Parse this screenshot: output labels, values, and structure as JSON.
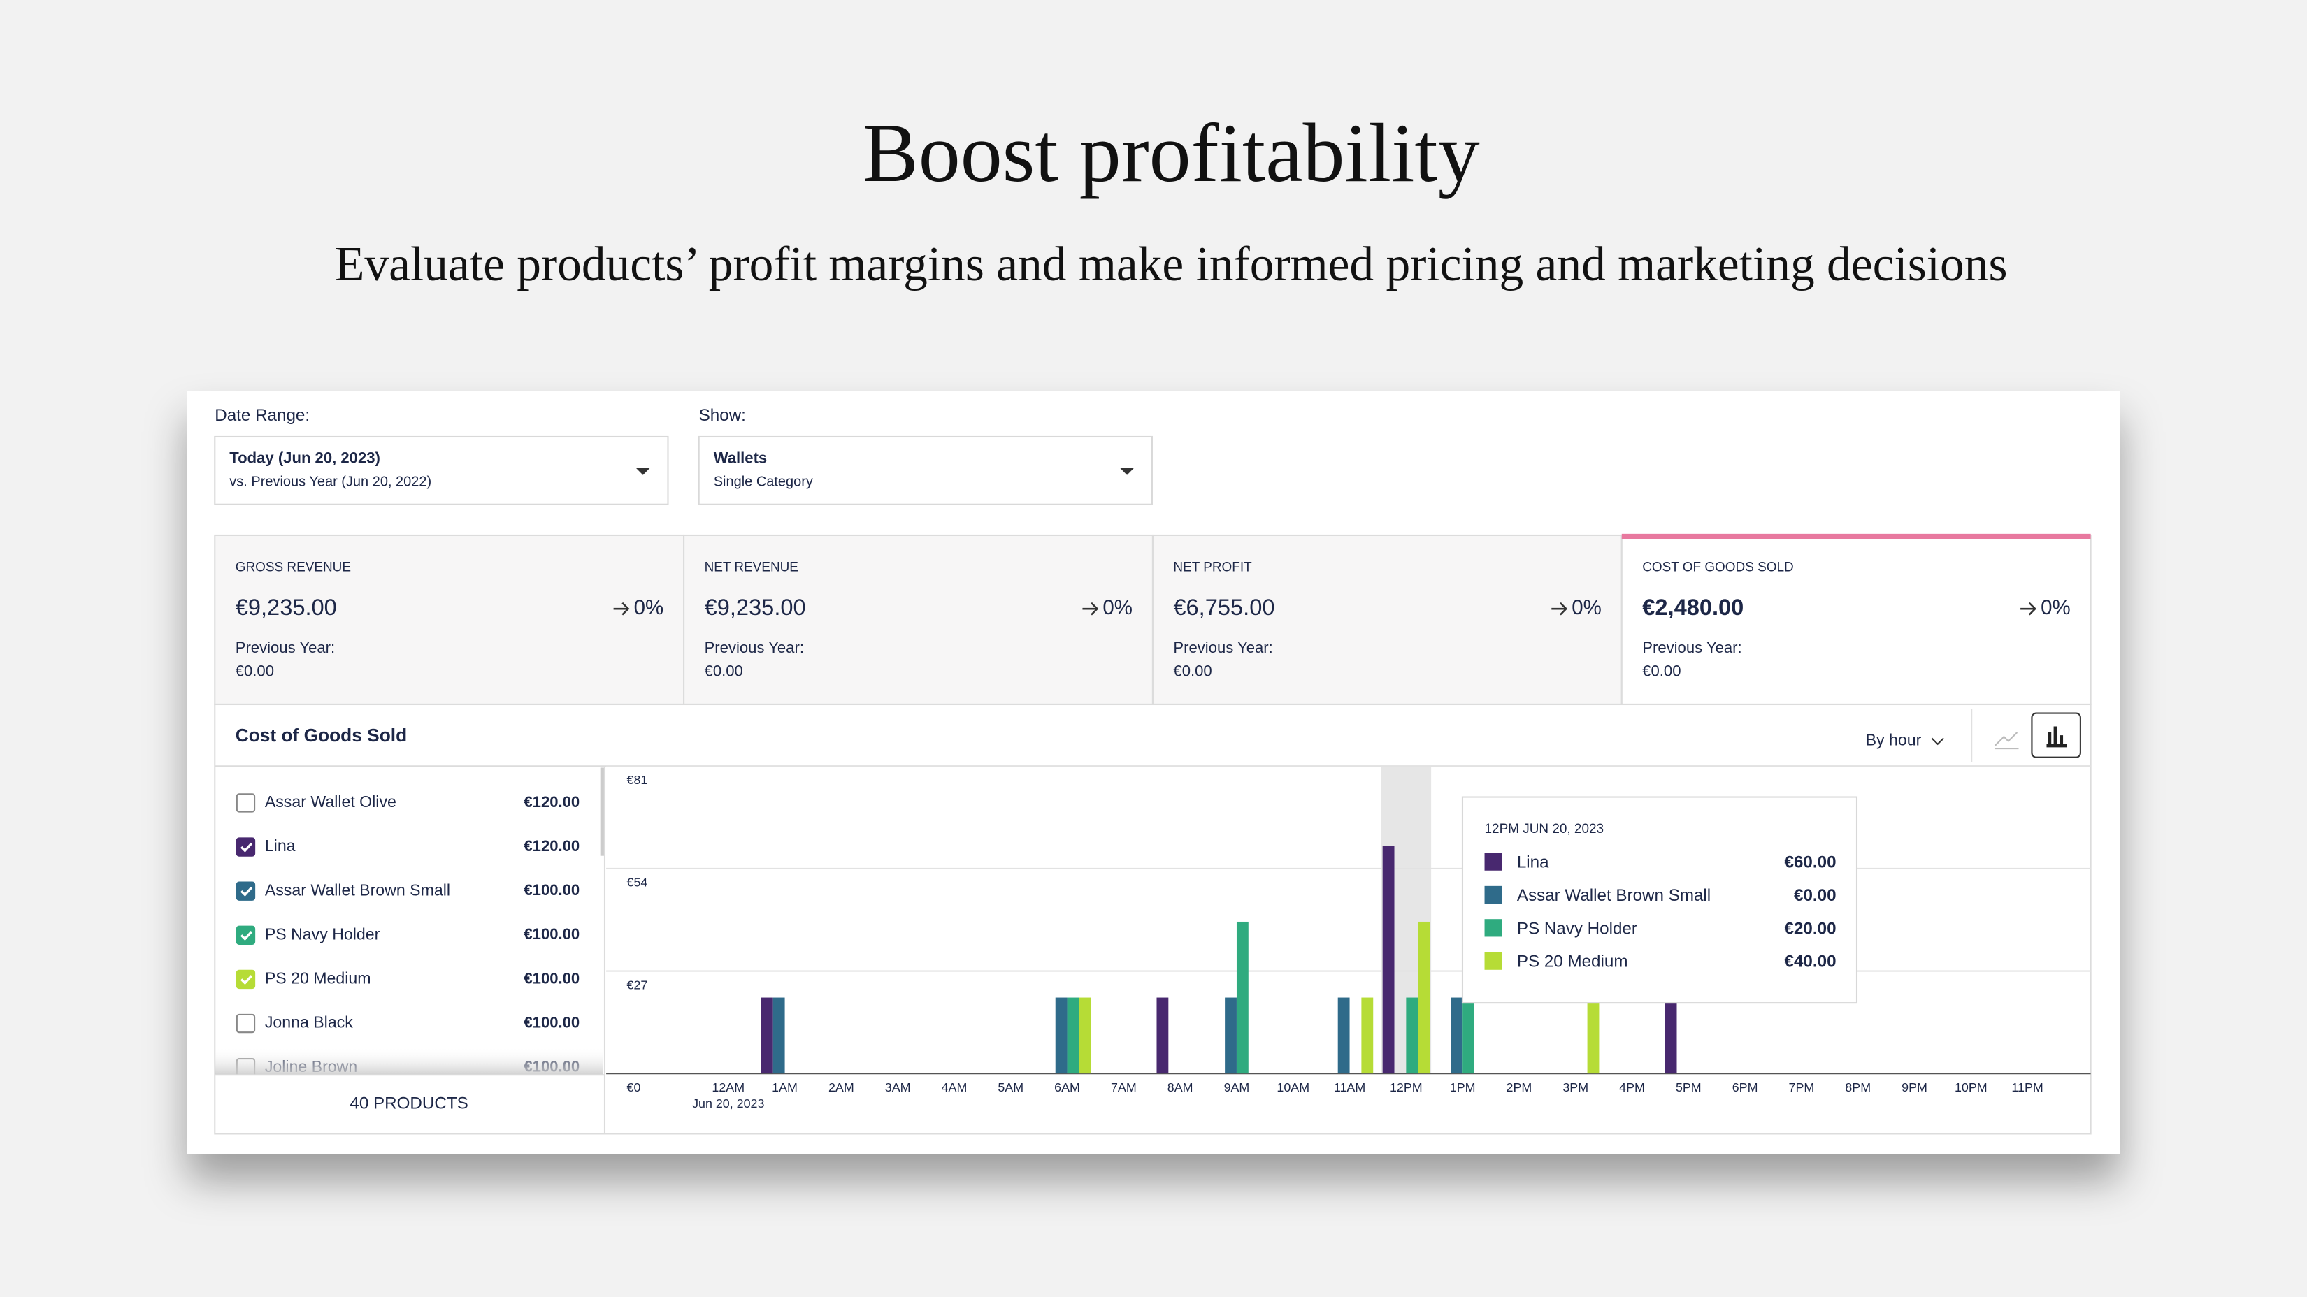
{
  "header": {
    "title": "Boost profitability",
    "subtitle": "Evaluate products’ profit margins and make informed pricing and marketing decisions"
  },
  "filters": [
    {
      "label": "Date Range:",
      "value": "Today (Jun 20, 2023)",
      "detail": "vs. Previous Year (Jun 20, 2022)"
    },
    {
      "label": "Show:",
      "value": "Wallets",
      "detail": "Single Category"
    }
  ],
  "kpis": [
    {
      "label": "GROSS REVENUE",
      "value": "€9,235.00",
      "change": "0%",
      "previous_label": "Previous Year:",
      "previous": "€0.00"
    },
    {
      "label": "NET REVENUE",
      "value": "€9,235.00",
      "change": "0%",
      "previous_label": "Previous Year:",
      "previous": "€0.00"
    },
    {
      "label": "NET PROFIT",
      "value": "€6,755.00",
      "change": "0%",
      "previous_label": "Previous Year:",
      "previous": "€0.00"
    },
    {
      "label": "COST OF GOODS SOLD",
      "value": "€2,480.00",
      "change": "0%",
      "previous_label": "Previous Year:",
      "previous": "€0.00"
    }
  ],
  "panel": {
    "title": "Cost of Goods Sold",
    "granularity": "By hour"
  },
  "products": {
    "items": [
      {
        "name": "Assar Wallet Olive",
        "value": "€120.00",
        "checked": false
      },
      {
        "name": "Lina",
        "value": "€120.00",
        "checked": true
      },
      {
        "name": "Assar Wallet Brown Small",
        "value": "€100.00",
        "checked": true
      },
      {
        "name": "PS Navy Holder",
        "value": "€100.00",
        "checked": true
      },
      {
        "name": "PS 20 Medium",
        "value": "€100.00",
        "checked": true
      },
      {
        "name": "Jonna Black",
        "value": "€100.00",
        "checked": false
      },
      {
        "name": "Joline Brown",
        "value": "€100.00",
        "checked": false
      }
    ],
    "count": "40 PRODUCTS"
  },
  "chart_data": {
    "type": "bar",
    "date_label": "Jun 20, 2023",
    "categories": [
      "12AM",
      "1AM",
      "2AM",
      "3AM",
      "4AM",
      "5AM",
      "6AM",
      "7AM",
      "8AM",
      "9AM",
      "10AM",
      "11AM",
      "12PM",
      "1PM",
      "2PM",
      "3PM",
      "4PM",
      "5PM",
      "6PM",
      "7PM",
      "8PM",
      "9PM",
      "10PM",
      "11PM"
    ],
    "series": [
      {
        "name": "Lina",
        "color": "#48286f",
        "values": [
          0,
          20,
          0,
          0,
          0,
          0,
          0,
          0,
          20,
          0,
          0,
          0,
          60,
          0,
          0,
          0,
          0,
          20,
          0,
          0,
          0,
          0,
          0,
          0
        ]
      },
      {
        "name": "Assar Wallet Brown Small",
        "color": "#2f6b8a",
        "values": [
          0,
          20,
          0,
          0,
          0,
          0,
          20,
          0,
          0,
          20,
          0,
          20,
          0,
          20,
          0,
          0,
          0,
          0,
          0,
          0,
          0,
          0,
          0,
          0
        ]
      },
      {
        "name": "PS Navy Holder",
        "color": "#2fab7f",
        "values": [
          0,
          0,
          0,
          0,
          0,
          0,
          20,
          0,
          0,
          40,
          0,
          0,
          20,
          20,
          0,
          0,
          0,
          0,
          0,
          0,
          0,
          0,
          0,
          0
        ]
      },
      {
        "name": "PS 20 Medium",
        "color": "#b6dc36",
        "values": [
          0,
          0,
          0,
          0,
          0,
          0,
          20,
          0,
          0,
          0,
          0,
          20,
          40,
          0,
          0,
          20,
          0,
          0,
          0,
          0,
          0,
          0,
          0,
          0
        ]
      }
    ],
    "ylim": [
      0,
      81
    ],
    "yticks": [
      {
        "value": 0,
        "label": "€0"
      },
      {
        "value": 27,
        "label": "€27"
      },
      {
        "value": 54,
        "label": "€54"
      },
      {
        "value": 81,
        "label": "€81"
      }
    ],
    "grid": true
  },
  "tooltip": {
    "title": "12PM JUN 20, 2023",
    "rows": [
      {
        "name": "Lina",
        "value": "€60.00"
      },
      {
        "name": "Assar Wallet Brown Small",
        "value": "€0.00"
      },
      {
        "name": "PS Navy Holder",
        "value": "€20.00"
      },
      {
        "name": "PS 20 Medium",
        "value": "€40.00"
      }
    ]
  }
}
